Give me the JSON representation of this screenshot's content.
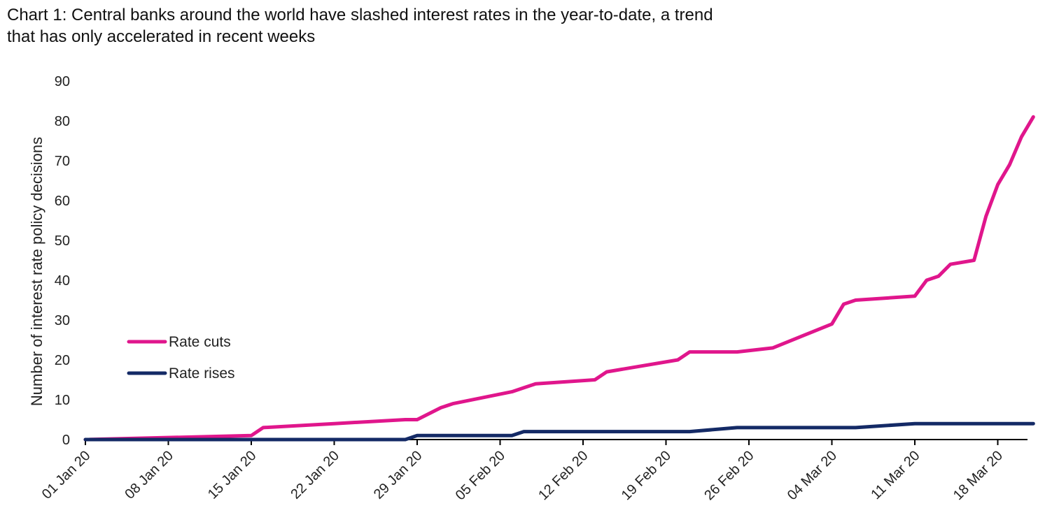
{
  "title_lines": [
    "Chart 1: Central banks around the world have slashed interest rates in the year-to-date, a trend",
    "that has only accelerated in recent weeks"
  ],
  "chart_data": {
    "type": "line",
    "title": "Chart 1: Central banks around the world have slashed interest rates in the year-to-date, a trend that has only accelerated in recent weeks",
    "ylabel": "Number of interest rate policy decisions",
    "xlabel": "",
    "ylim": [
      0,
      90
    ],
    "yticks": [
      0,
      10,
      20,
      30,
      40,
      50,
      60,
      70,
      80,
      90
    ],
    "xlim": [
      "2020-01-01",
      "2020-03-22"
    ],
    "xticks": [
      "01 Jan 20",
      "08 Jan 20",
      "15 Jan 20",
      "22 Jan 20",
      "29 Jan 20",
      "05 Feb 20",
      "12 Feb 20",
      "19 Feb 20",
      "26 Feb 20",
      "04 Mar 20",
      "11 Mar 20",
      "18 Mar 20"
    ],
    "grid": false,
    "legend_position": "center-left",
    "series": [
      {
        "name": "Rate cuts",
        "color": "#e0168c",
        "points": [
          [
            "2020-01-01",
            0
          ],
          [
            "2020-01-15",
            1
          ],
          [
            "2020-01-16",
            3
          ],
          [
            "2020-01-22",
            4
          ],
          [
            "2020-01-28",
            5
          ],
          [
            "2020-01-29",
            5
          ],
          [
            "2020-01-31",
            8
          ],
          [
            "2020-02-01",
            9
          ],
          [
            "2020-02-06",
            12
          ],
          [
            "2020-02-07",
            13
          ],
          [
            "2020-02-08",
            14
          ],
          [
            "2020-02-13",
            15
          ],
          [
            "2020-02-14",
            17
          ],
          [
            "2020-02-20",
            20
          ],
          [
            "2020-02-21",
            22
          ],
          [
            "2020-02-25",
            22
          ],
          [
            "2020-02-28",
            23
          ],
          [
            "2020-03-04",
            29
          ],
          [
            "2020-03-05",
            34
          ],
          [
            "2020-03-06",
            35
          ],
          [
            "2020-03-11",
            36
          ],
          [
            "2020-03-12",
            40
          ],
          [
            "2020-03-13",
            41
          ],
          [
            "2020-03-14",
            44
          ],
          [
            "2020-03-16",
            45
          ],
          [
            "2020-03-17",
            56
          ],
          [
            "2020-03-18",
            64
          ],
          [
            "2020-03-19",
            69
          ],
          [
            "2020-03-20",
            76
          ],
          [
            "2020-03-21",
            81
          ]
        ]
      },
      {
        "name": "Rate rises",
        "color": "#142a66",
        "points": [
          [
            "2020-01-01",
            0
          ],
          [
            "2020-01-28",
            0
          ],
          [
            "2020-01-29",
            1
          ],
          [
            "2020-02-06",
            1
          ],
          [
            "2020-02-07",
            2
          ],
          [
            "2020-02-21",
            2
          ],
          [
            "2020-02-25",
            3
          ],
          [
            "2020-03-06",
            3
          ],
          [
            "2020-03-11",
            4
          ],
          [
            "2020-03-21",
            4
          ]
        ]
      }
    ]
  }
}
